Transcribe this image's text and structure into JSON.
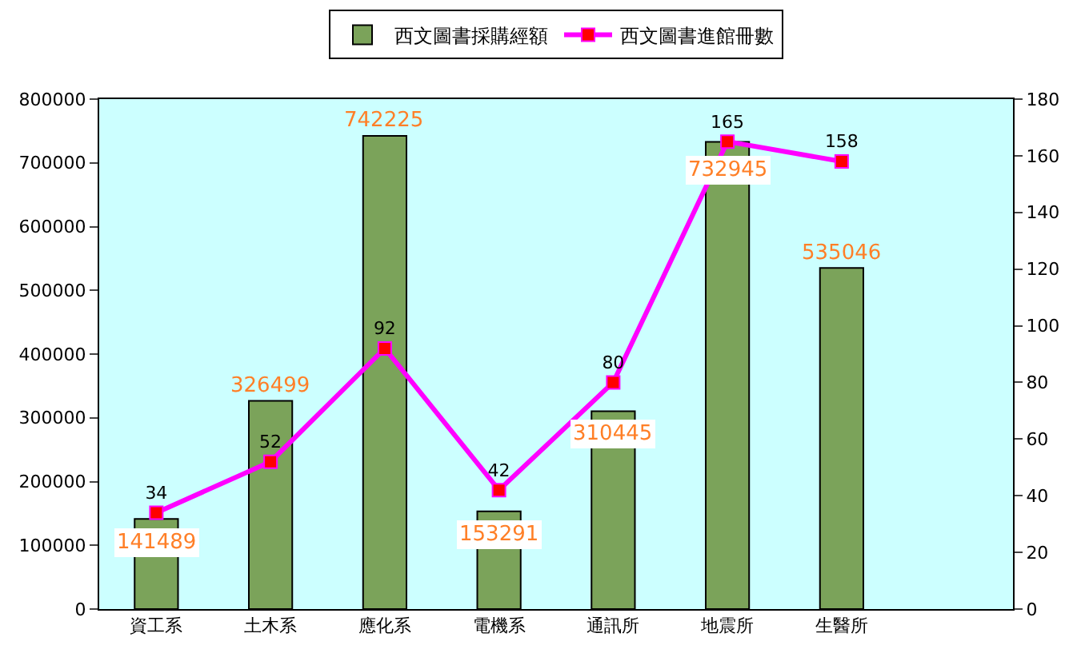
{
  "chart_data": {
    "type": "bar",
    "categories": [
      "資工系",
      "土木系",
      "應化系",
      "電機系",
      "通訊所",
      "地震所",
      "生醫所",
      null
    ],
    "series": [
      {
        "name": "西文圖書採購經額",
        "type": "bar",
        "color": "#7ba35a",
        "values": [
          141489,
          326499,
          742225,
          153291,
          310445,
          732945,
          535046,
          null
        ]
      },
      {
        "name": "西文圖書進館冊數",
        "type": "line",
        "axis": "y2",
        "color": "#ff00ff",
        "marker": "square",
        "values": [
          34,
          52,
          92,
          42,
          80,
          165,
          158,
          null
        ]
      }
    ],
    "ylim": [
      0,
      800000
    ],
    "yticks": [
      0,
      100000,
      200000,
      300000,
      400000,
      500000,
      600000,
      700000,
      800000
    ],
    "y2lim": [
      0,
      180
    ],
    "y2ticks": [
      0,
      20,
      40,
      60,
      80,
      100,
      120,
      140,
      160,
      180
    ],
    "data_labels": true,
    "legend": "top",
    "grid": false
  }
}
